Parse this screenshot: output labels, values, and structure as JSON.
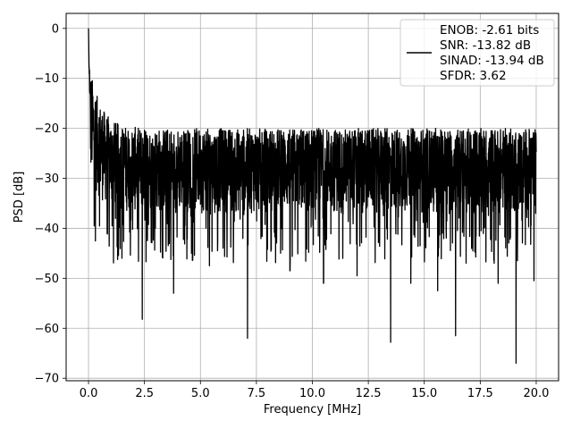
{
  "chart_data": {
    "type": "line",
    "title": "",
    "xlabel": "Frequency [MHz]",
    "ylabel": "PSD [dB]",
    "xlim": [
      -1.0,
      21.0
    ],
    "ylim": [
      -70.5,
      3.0
    ],
    "grid": true,
    "legend_position": "top-right",
    "x_ticks": [
      0.0,
      2.5,
      5.0,
      7.5,
      10.0,
      12.5,
      15.0,
      17.5,
      20.0
    ],
    "x_tick_labels": [
      "0.0",
      "2.5",
      "5.0",
      "7.5",
      "10.0",
      "12.5",
      "15.0",
      "17.5",
      "20.0"
    ],
    "y_ticks": [
      0,
      -10,
      -20,
      -30,
      -40,
      -50,
      -60,
      -70
    ],
    "y_tick_labels": [
      "0",
      "−10",
      "−20",
      "−30",
      "−40",
      "−50",
      "−60",
      "−70"
    ],
    "series": [
      {
        "color": "#000000",
        "x_range": [
          0.0,
          20.0
        ],
        "legend_lines": [
          "ENOB: -2.61 bits",
          "SNR: -13.82 dB",
          "SINAD: -13.94 dB",
          "SFDR: 3.62"
        ],
        "peak": [
          0.0,
          0.0
        ],
        "noise_envelope": {
          "upper_start": -6.0,
          "upper_typical": -20.0,
          "lower_typical": -37.0,
          "median": -28.0
        },
        "notable_minima": [
          [
            2.4,
            -58.2
          ],
          [
            3.8,
            -53.0
          ],
          [
            4.6,
            -45.0
          ],
          [
            5.4,
            -47.5
          ],
          [
            7.1,
            -62.0
          ],
          [
            9.0,
            -48.5
          ],
          [
            10.5,
            -51.0
          ],
          [
            12.0,
            -49.5
          ],
          [
            13.5,
            -62.8
          ],
          [
            14.4,
            -51.0
          ],
          [
            15.6,
            -52.5
          ],
          [
            16.4,
            -61.5
          ],
          [
            18.3,
            -51.0
          ],
          [
            19.1,
            -67.0
          ],
          [
            19.9,
            -50.5
          ]
        ]
      }
    ]
  }
}
